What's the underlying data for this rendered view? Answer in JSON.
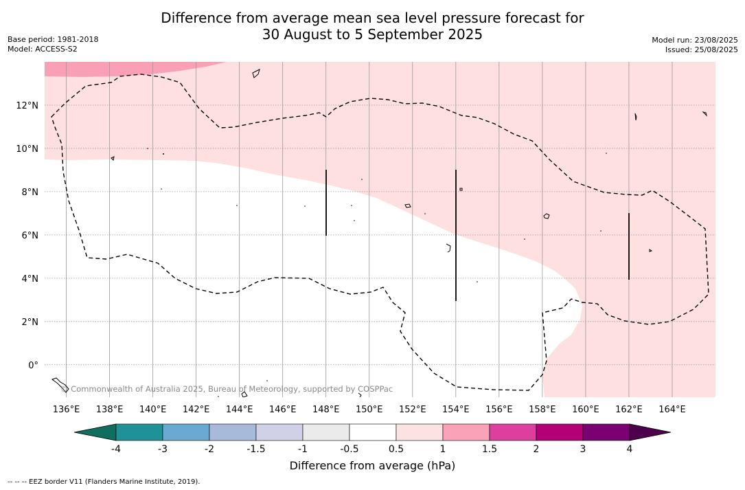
{
  "title": {
    "line1": "Difference from average mean sea level pressure forecast for",
    "line2": "30 August to 5 September 2025"
  },
  "meta_left": {
    "base_period": "Base period: 1981-2018",
    "model": "Model: ACCESS-S2"
  },
  "meta_right": {
    "model_run": "Model run: 23/08/2025",
    "issued": "Issued: 25/08/2025"
  },
  "map": {
    "lon_range": [
      135,
      166
    ],
    "lat_range": [
      -1.5,
      14
    ],
    "lon_ticks": [
      {
        "value": 136,
        "label": "136°E"
      },
      {
        "value": 138,
        "label": "138°E"
      },
      {
        "value": 140,
        "label": "140°E"
      },
      {
        "value": 142,
        "label": "142°E"
      },
      {
        "value": 144,
        "label": "144°E"
      },
      {
        "value": 146,
        "label": "146°E"
      },
      {
        "value": 148,
        "label": "148°E"
      },
      {
        "value": 150,
        "label": "150°E"
      },
      {
        "value": 152,
        "label": "152°E"
      },
      {
        "value": 154,
        "label": "154°E"
      },
      {
        "value": 156,
        "label": "156°E"
      },
      {
        "value": 158,
        "label": "158°E"
      },
      {
        "value": 160,
        "label": "160°E"
      },
      {
        "value": 162,
        "label": "162°E"
      },
      {
        "value": 164,
        "label": "164°E"
      }
    ],
    "lat_ticks": [
      {
        "value": 12,
        "label": "12°N"
      },
      {
        "value": 10,
        "label": "10°N"
      },
      {
        "value": 8,
        "label": "8°N"
      },
      {
        "value": 6,
        "label": "6°N"
      },
      {
        "value": 4,
        "label": "4°N"
      },
      {
        "value": 2,
        "label": "2°N"
      },
      {
        "value": 0,
        "label": "0°"
      }
    ],
    "gridlines": true,
    "copyright": "© Commonwealth of Australia 2025, Bureau of Meteorology, supported by COSPPac"
  },
  "colorbar": {
    "tick_labels": [
      "-4",
      "-3",
      "-2",
      "-1.5",
      "-1",
      "-0.5",
      "0.5",
      "1",
      "1.5",
      "2",
      "3",
      "4"
    ],
    "colors": [
      "#1f9198",
      "#6aa9d1",
      "#a8bad9",
      "#d0d0e6",
      "#ebebeb",
      "#ffffff",
      "#fde2e2",
      "#f9a2b8",
      "#dc3f9e",
      "#b30077",
      "#7b0072"
    ],
    "low_extend_color": "#0f6e5f",
    "high_extend_color": "#4d004b",
    "label": "Difference from average (hPa)"
  },
  "regions": {
    "pale_pink": "#fde0df",
    "medium_pink": "#f9a0b6"
  },
  "footnote": "-- -- -- EEZ border V11 (Flanders Marine Institute, 2019)."
}
